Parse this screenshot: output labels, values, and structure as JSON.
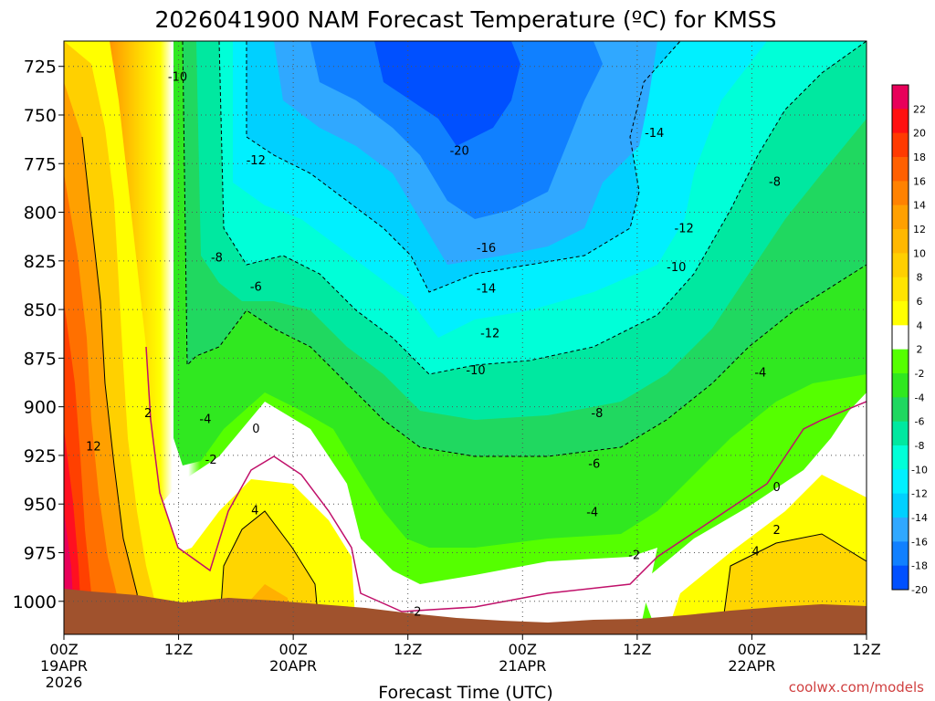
{
  "chart_data": {
    "type": "contour",
    "title": "2026041900 NAM Forecast Temperature (ºC) for KMSS",
    "xlabel": "Forecast Time (UTC)",
    "ylabel": "",
    "credit": "coolwx.com/models",
    "y_axis": {
      "scale": "pressure",
      "ticks": [
        725,
        750,
        775,
        800,
        825,
        850,
        875,
        900,
        925,
        950,
        975,
        1000
      ],
      "range": [
        712,
        1017
      ]
    },
    "x_axis": {
      "range_hours": [
        0,
        84
      ],
      "ticks": [
        {
          "hour": 0,
          "label": "00Z",
          "date": "19APR",
          "year": "2026"
        },
        {
          "hour": 12,
          "label": "12Z",
          "date": "",
          "year": ""
        },
        {
          "hour": 24,
          "label": "00Z",
          "date": "20APR",
          "year": ""
        },
        {
          "hour": 36,
          "label": "12Z",
          "date": "",
          "year": ""
        },
        {
          "hour": 48,
          "label": "00Z",
          "date": "21APR",
          "year": ""
        },
        {
          "hour": 60,
          "label": "12Z",
          "date": "",
          "year": ""
        },
        {
          "hour": 72,
          "label": "00Z",
          "date": "22APR",
          "year": ""
        },
        {
          "hour": 84,
          "label": "12Z",
          "date": "",
          "year": ""
        }
      ]
    },
    "grid": true,
    "colorbar": {
      "placement": "right",
      "levels": [
        22,
        20,
        18,
        16,
        14,
        12,
        10,
        8,
        6,
        4,
        2,
        -2,
        -4,
        -6,
        -8,
        -10,
        -12,
        -14,
        -16,
        -18,
        -20
      ],
      "colors": [
        "#e8005a",
        "#ff1010",
        "#ff3a00",
        "#ff6000",
        "#ff8200",
        "#ffa000",
        "#ffb800",
        "#ffcf00",
        "#ffe400",
        "#ffff00",
        "#ffffff",
        "#55ff00",
        "#30e820",
        "#20d860",
        "#00e8a0",
        "#00ffd8",
        "#00f0ff",
        "#00d0ff",
        "#30a8ff",
        "#1080ff",
        "#0050ff"
      ]
    },
    "contour_labels": [
      {
        "value": "-10",
        "x": 11.9,
        "y": 730
      },
      {
        "value": "-14",
        "x": 61.8,
        "y": 759
      },
      {
        "value": "-20",
        "x": 41.4,
        "y": 768
      },
      {
        "value": "-12",
        "x": 20.1,
        "y": 773
      },
      {
        "value": "-8",
        "x": 74.4,
        "y": 784
      },
      {
        "value": "-12",
        "x": 64.9,
        "y": 808
      },
      {
        "value": "-16",
        "x": 44.2,
        "y": 818
      },
      {
        "value": "-8",
        "x": 16.0,
        "y": 823
      },
      {
        "value": "-10",
        "x": 64.1,
        "y": 828
      },
      {
        "value": "-6",
        "x": 20.1,
        "y": 838
      },
      {
        "value": "-14",
        "x": 44.2,
        "y": 839
      },
      {
        "value": "-12",
        "x": 44.6,
        "y": 862
      },
      {
        "value": "-4",
        "x": 72.9,
        "y": 882
      },
      {
        "value": "-10",
        "x": 43.1,
        "y": 881
      },
      {
        "value": "-8",
        "x": 55.8,
        "y": 903
      },
      {
        "value": "2",
        "x": 8.8,
        "y": 903
      },
      {
        "value": "-4",
        "x": 14.8,
        "y": 906
      },
      {
        "value": "0",
        "x": 20.1,
        "y": 911
      },
      {
        "value": "12",
        "x": 3.1,
        "y": 920
      },
      {
        "value": "-2",
        "x": 15.4,
        "y": 927
      },
      {
        "value": "-6",
        "x": 55.5,
        "y": 929
      },
      {
        "value": "0",
        "x": 74.6,
        "y": 941
      },
      {
        "value": "4",
        "x": 20.0,
        "y": 953
      },
      {
        "value": "-4",
        "x": 55.3,
        "y": 954
      },
      {
        "value": "2",
        "x": 74.6,
        "y": 963
      },
      {
        "value": "4",
        "x": 72.4,
        "y": 974
      },
      {
        "value": "-2",
        "x": 59.7,
        "y": 976
      },
      {
        "value": "-2",
        "x": 36.8,
        "y": 1005
      }
    ]
  }
}
